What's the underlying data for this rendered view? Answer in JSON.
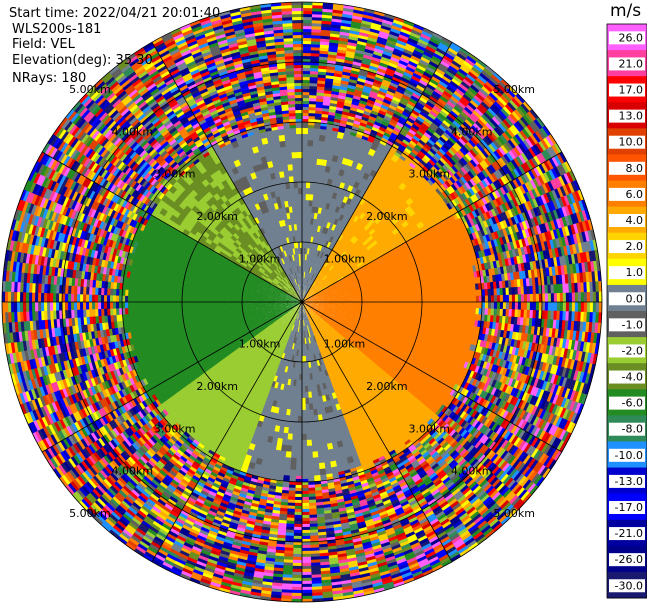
{
  "info": {
    "start_time": "Start time: 2022/04/21 20:01:40",
    "instrument": "WLS200s-181",
    "field": "Field: VEL",
    "elevation": "Elevation(deg): 35.30",
    "nrays": "NRays: 180"
  },
  "colorbar": {
    "unit": "m/s",
    "range": [
      -30,
      30
    ],
    "ticks": [
      "26.0",
      "21.0",
      "17.0",
      "13.0",
      "10.0",
      "8.0",
      "6.0",
      "4.0",
      "2.0",
      "1.0",
      "0.0",
      "-1.0",
      "-2.0",
      "-4.0",
      "-6.0",
      "-8.0",
      "-10.0",
      "-13.0",
      "-17.0",
      "-21.0",
      "-26.0",
      "-30.0"
    ],
    "colors": [
      "#ff5fff",
      "#ff3fa0",
      "#ff0000",
      "#d80000",
      "#e04000",
      "#ff5500",
      "#ff7f00",
      "#ffaa00",
      "#ffd400",
      "#ffff00",
      "#708090",
      "#606060",
      "#9acd32",
      "#6b8e23",
      "#228b22",
      "#2e8b57",
      "#1e90ff",
      "#0000cd",
      "#0000ff",
      "#0000a0",
      "#00008b",
      "#191970"
    ]
  },
  "chart_data": {
    "type": "heatmap",
    "subtype": "polar-ppi",
    "field": "VEL",
    "unit": "m/s",
    "nrays": 180,
    "ring_labels": [
      "1.00km",
      "2.00km",
      "3.00km",
      "4.00km",
      "5.00km"
    ],
    "ring_km": [
      1,
      2,
      3,
      4,
      5
    ],
    "valid_range_km": 3.0,
    "max_range_km": 5.0,
    "sectors": [
      {
        "from_deg": 330,
        "to_deg": 30,
        "velocity_ms": -0.5
      },
      {
        "from_deg": 30,
        "to_deg": 60,
        "velocity_ms": 2.5
      },
      {
        "from_deg": 60,
        "to_deg": 130,
        "velocity_ms": 5.0
      },
      {
        "from_deg": 130,
        "to_deg": 160,
        "velocity_ms": 3.0
      },
      {
        "from_deg": 160,
        "to_deg": 200,
        "velocity_ms": -0.5
      },
      {
        "from_deg": 200,
        "to_deg": 235,
        "velocity_ms": -3.0
      },
      {
        "from_deg": 235,
        "to_deg": 300,
        "velocity_ms": -7.0
      },
      {
        "from_deg": 300,
        "to_deg": 330,
        "velocity_ms": -4.0
      }
    ],
    "noise_beyond_valid_range": true
  }
}
